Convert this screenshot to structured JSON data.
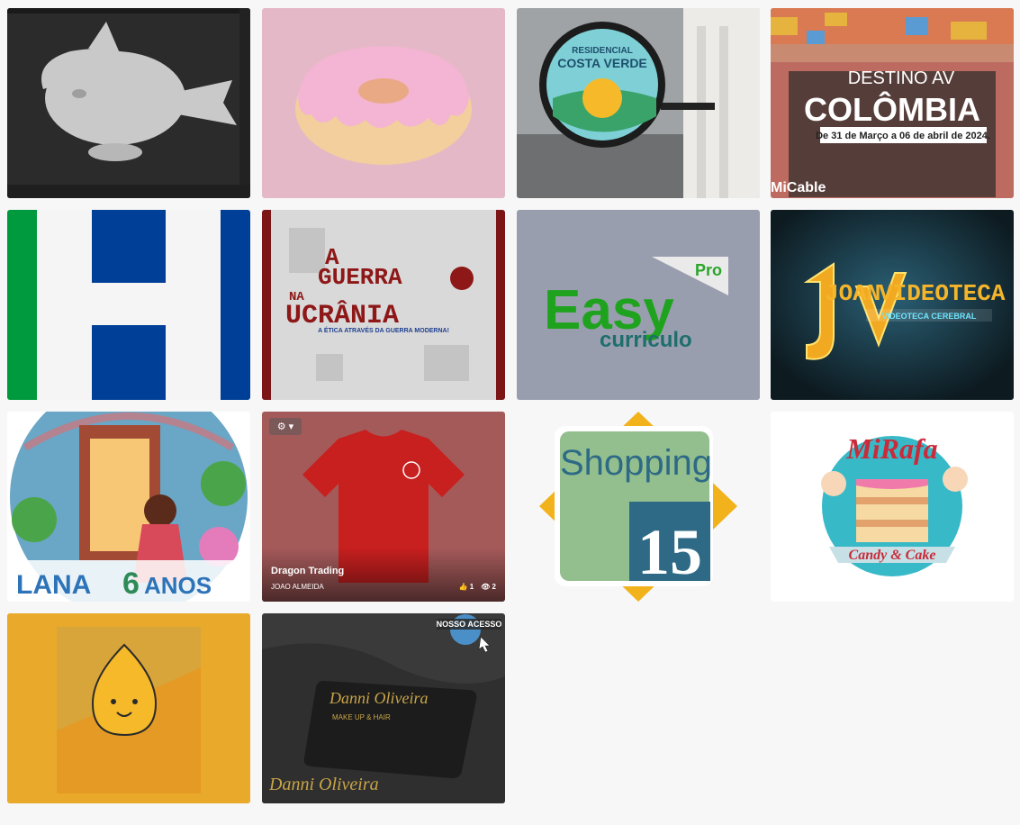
{
  "gallery": {
    "items": [
      {
        "id": "whale",
        "alt": "3D whale model render",
        "texts": []
      },
      {
        "id": "donut",
        "alt": "Pink donut render",
        "texts": []
      },
      {
        "id": "costa",
        "alt": "Residencial Costa Verde sign",
        "texts": [
          "RESIDENCIAL",
          "COSTA VERDE"
        ]
      },
      {
        "id": "colombia",
        "alt": "Destino AV Colômbia",
        "texts": [
          "DESTINO AV",
          "COLÔMBIA",
          "De 31 de Março a 06 de abril de 2024.",
          "MiCable"
        ]
      },
      {
        "id": "h",
        "alt": "H logo",
        "texts": []
      },
      {
        "id": "ukraine",
        "alt": "A Guerra na Ucrânia",
        "texts": [
          "A",
          "GUERRA",
          "NA",
          "UCRÂNIA",
          "A ÉTICA ATRAVÉS DA GUERRA MODERNA!"
        ]
      },
      {
        "id": "easy",
        "alt": "Easy curriculo Pro",
        "texts": [
          "Pro",
          "Easy",
          "curriculo"
        ]
      },
      {
        "id": "joan",
        "alt": "Joan Videoteca",
        "texts": [
          "JOAN",
          "VIDEOTECA",
          "VIDEOTECA CEREBRAL"
        ]
      },
      {
        "id": "lana",
        "alt": "Lana 6 anos",
        "texts": [
          "LANA",
          "6",
          "ANOS"
        ]
      },
      {
        "id": "dragon",
        "alt": "Dragon Trading shirt",
        "title": "Dragon Trading",
        "owner": "JOAO ALMEIDA",
        "likes": "1",
        "views": "2",
        "gear": "▾"
      },
      {
        "id": "shopping",
        "alt": "Shopping 15",
        "texts": [
          "Shopping",
          "15"
        ]
      },
      {
        "id": "mirafa",
        "alt": "MiRafa Candy & Cake",
        "texts": [
          "MiRafa",
          "Candy & Cake"
        ]
      },
      {
        "id": "box",
        "alt": "Pizza box mockup",
        "texts": []
      },
      {
        "id": "danni",
        "alt": "Danni Oliveira card",
        "texts": [
          "NOSSO ACESSO",
          "Danni Oliveira",
          "MAKE UP & HAIR",
          "Danni Oliveira"
        ]
      }
    ]
  }
}
